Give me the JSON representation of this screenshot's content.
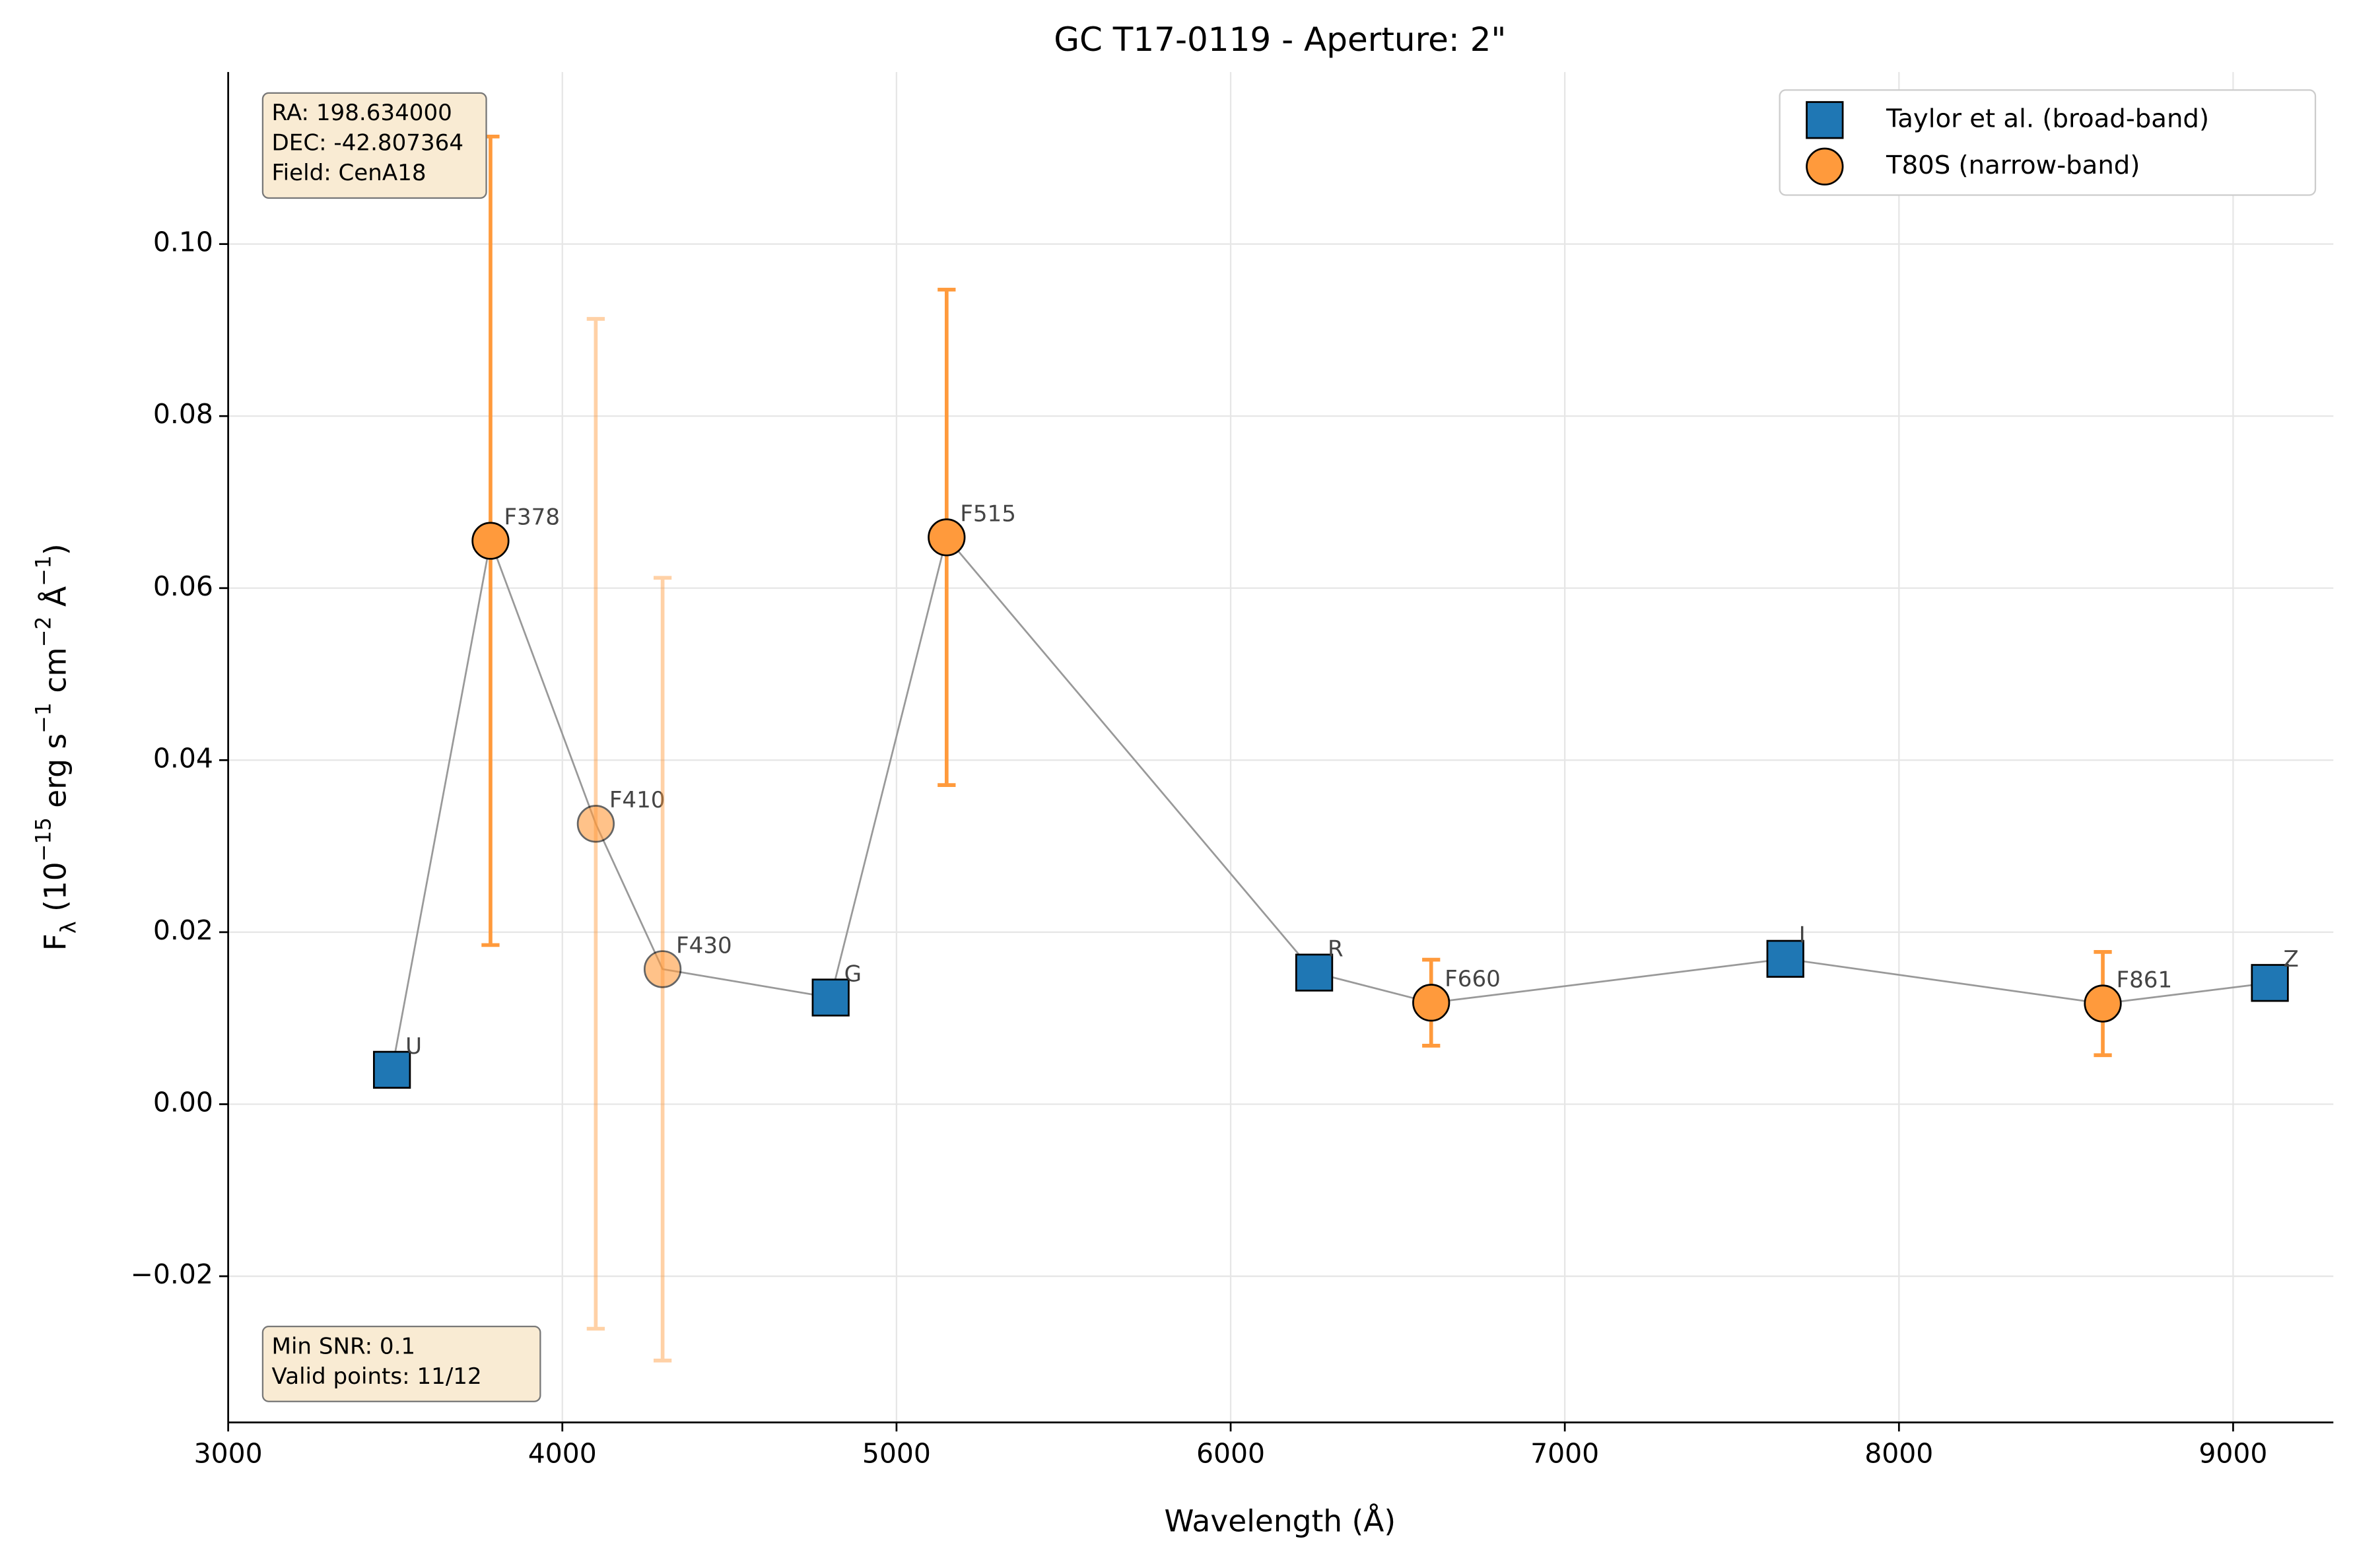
{
  "chart_data": {
    "type": "scatter",
    "title": "GC T17-0119 - Aperture: 2\"",
    "xlabel": "Wavelength (Å)",
    "ylabel": [
      "F",
      "λ",
      " (10",
      "−15",
      " erg s",
      "−1",
      " cm",
      "−2",
      " Å",
      "−1",
      ")"
    ],
    "xlim": [
      3000,
      9300
    ],
    "ylim": [
      -0.037,
      0.12
    ],
    "xticks": [
      3000,
      4000,
      5000,
      6000,
      7000,
      8000,
      9000
    ],
    "yticks": [
      {
        "value": -0.02,
        "label": "−0.02"
      },
      {
        "value": 0,
        "label": "0.00"
      },
      0.02,
      0.04,
      0.06,
      0.08,
      {
        "value": 0.1,
        "label": "0.10"
      }
    ],
    "grid": true,
    "legend": "upper right",
    "connect_color": "#999999",
    "annotations": [
      [
        "RA: 198.634000",
        "DEC: -42.807364",
        "Field: CenA18"
      ],
      [
        "Min SNR: 0.1",
        "Valid points: 11/12"
      ]
    ],
    "series": [
      {
        "name": "Taylor et al. (broad-band)",
        "marker": "square",
        "color": "#1f77b4",
        "labels": [
          "U",
          "G",
          "R",
          "I",
          "Z"
        ],
        "x": [
          3490,
          4803,
          6250,
          7660,
          9110
        ],
        "values": [
          0.004,
          0.0124,
          0.0153,
          0.0169,
          0.0141
        ]
      },
      {
        "name": "T80S (narrow-band)",
        "marker": "circle",
        "color": "#ff9a3c",
        "labels": [
          "F378",
          "F410",
          "F430",
          "F515",
          "F660",
          "F861"
        ],
        "x": [
          3785,
          4100,
          4300,
          5150,
          6600,
          8610
        ],
        "values": [
          0.0655,
          0.0326,
          0.0157,
          0.0659,
          0.0118,
          0.0117
        ],
        "errors": [
          0.047,
          0.0587,
          0.0455,
          0.0288,
          0.005,
          0.006
        ],
        "opacity": [
          1,
          0.45,
          0.45,
          1,
          1,
          1
        ]
      }
    ]
  }
}
